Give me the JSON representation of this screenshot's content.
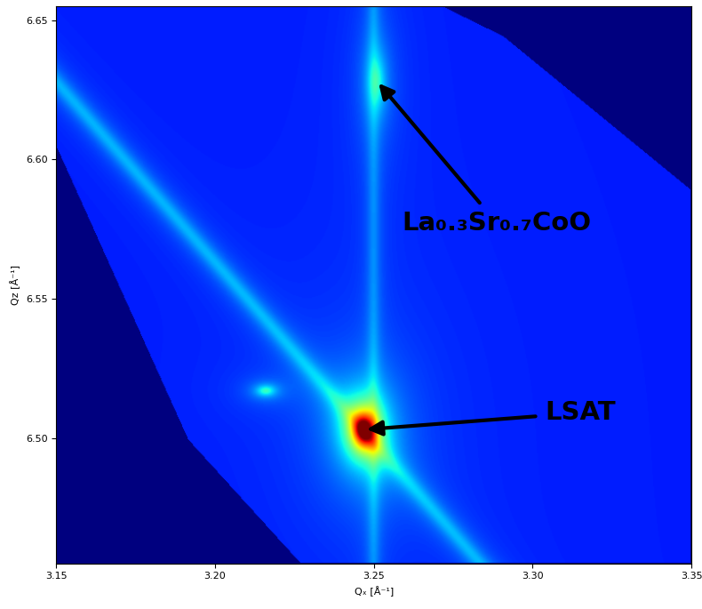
{
  "chart_data": {
    "type": "heatmap",
    "xlabel": "Qₓ [Å⁻¹]",
    "ylabel": "Qz [Å⁻¹]",
    "xlim": [
      3.15,
      3.35
    ],
    "xticks": [
      3.15,
      {
        "value": 3.2,
        "label": "3.20"
      },
      3.25,
      {
        "value": 3.3,
        "label": "3.30"
      },
      3.35
    ],
    "ylim": [
      6.455,
      6.655
    ],
    "yticks": [
      {
        "value": 6.5,
        "label": "6.50"
      },
      6.55,
      {
        "value": 6.6,
        "label": "6.60"
      },
      6.65
    ],
    "background": 0.15,
    "peaks": [
      {
        "label": "LSAT",
        "x": 3.247,
        "y": 6.503,
        "intensity": 0.85,
        "width": [
          0.004,
          0.007
        ]
      },
      {
        "label": "La₀.₃Sr₀.₇CoO",
        "x": 3.251,
        "y": 6.628,
        "intensity": 0.2,
        "width": [
          0.003,
          0.01
        ]
      },
      {
        "x": 3.216,
        "y": 6.517,
        "intensity": 0.25,
        "width": [
          0.003,
          0.002
        ]
      }
    ],
    "streaks": [
      {
        "x": [
          3.25,
          3.25
        ],
        "y": [
          6.455,
          6.655
        ],
        "intensity": 0.1,
        "width": 0.002
      },
      {
        "x": [
          3.15,
          3.272
        ],
        "y": [
          6.628,
          6.47
        ],
        "intensity": 0.15,
        "width": 0.003
      }
    ],
    "coverage": [
      [
        3.15,
        6.655
      ],
      [
        3.2719,
        6.655
      ],
      [
        3.291,
        6.6443
      ],
      [
        3.35,
        6.5892
      ],
      [
        3.35,
        6.455
      ],
      [
        3.227,
        6.455
      ],
      [
        3.1916,
        6.4994
      ],
      [
        3.15,
        6.6049
      ]
    ],
    "grid": false
  }
}
